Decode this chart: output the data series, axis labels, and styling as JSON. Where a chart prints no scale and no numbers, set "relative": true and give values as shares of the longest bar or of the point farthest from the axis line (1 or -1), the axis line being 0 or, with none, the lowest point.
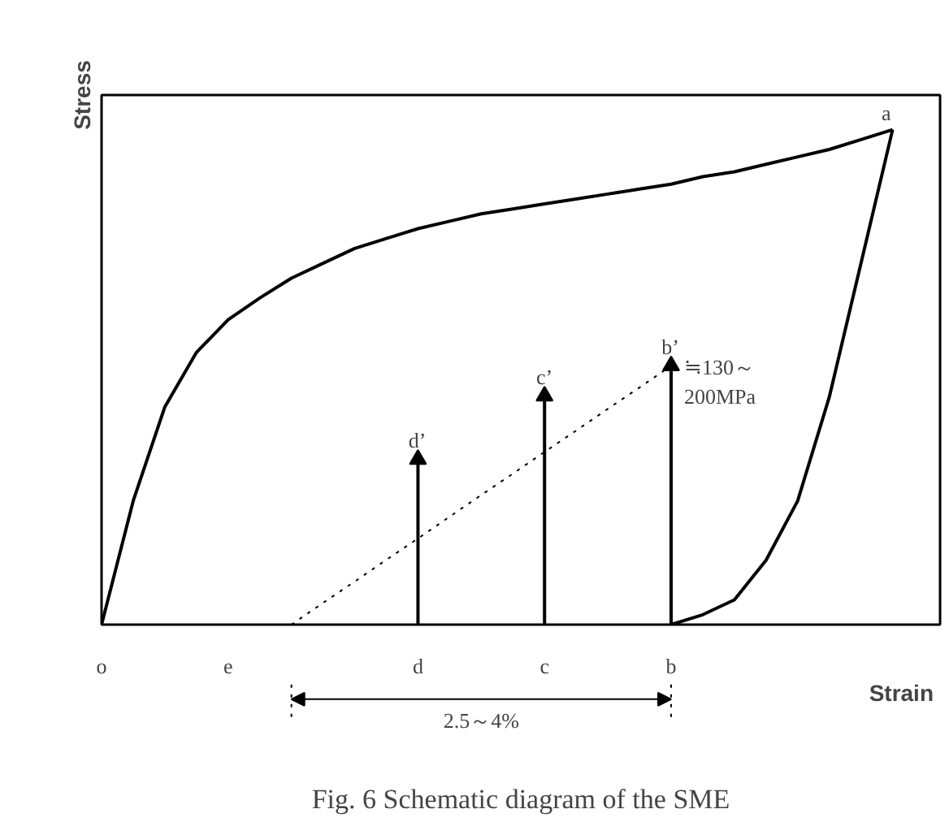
{
  "chart_data": {
    "type": "line",
    "relative": true,
    "xlabel": "Strain",
    "ylabel": "Stress",
    "tick_labels": "x",
    "categories": [
      "o",
      null,
      null,
      null,
      "e",
      null,
      null,
      null,
      null,
      null,
      "d",
      null,
      null,
      null,
      "c",
      null,
      null,
      null,
      "b",
      null,
      null,
      null,
      null,
      null,
      null,
      null
    ],
    "series": [
      {
        "color": "#000000",
        "line_style": "solid",
        "values": [
          0,
          0.25,
          0.44,
          0.55,
          0.616,
          0.66,
          0.7,
          0.73,
          0.76,
          0.78,
          0.8,
          0.815,
          0.83,
          0.84,
          0.85,
          0.86,
          0.87,
          0.88,
          0.89,
          0.905,
          0.915,
          0.93,
          0.945,
          0.96,
          0.98,
          1
        ]
      },
      {
        "color": "#000000",
        "line_style": "solid",
        "values": [
          null,
          null,
          null,
          null,
          null,
          null,
          null,
          null,
          null,
          null,
          null,
          null,
          null,
          null,
          null,
          null,
          null,
          null,
          0,
          0.02,
          0.05,
          0.13,
          0.25,
          0.46,
          0.73,
          1
        ]
      },
      {
        "color": "#000000",
        "line_style": "dotted",
        "values": [
          null,
          null,
          null,
          null,
          null,
          null,
          0,
          0.044,
          0.087,
          0.131,
          0.174,
          0.218,
          0.262,
          0.305,
          0.349,
          0.392,
          0.436,
          0.479,
          0.523,
          null,
          null,
          null,
          null,
          null,
          null,
          null
        ]
      },
      {
        "type": "lollipop",
        "color": "#000000",
        "marker": "triangle",
        "values": [
          null,
          null,
          null,
          null,
          null,
          null,
          null,
          null,
          null,
          null,
          0.334,
          null,
          null,
          null,
          0.462,
          null,
          null,
          null,
          0.523,
          null,
          null,
          null,
          null,
          null,
          null,
          null
        ]
      }
    ],
    "annotations": [
      {
        "text": "b’",
        "x": "b",
        "y": 0.523
      },
      {
        "text": "c’",
        "x": "c",
        "y": 0.462
      },
      {
        "text": "d’",
        "x": "d",
        "y": 0.334
      },
      {
        "text": "≒130～\n200MPa",
        "x": "b",
        "y": 0.523
      },
      "a",
      "2.5～4%",
      "Fig. 6 Schematic diagram of the SME"
    ]
  }
}
